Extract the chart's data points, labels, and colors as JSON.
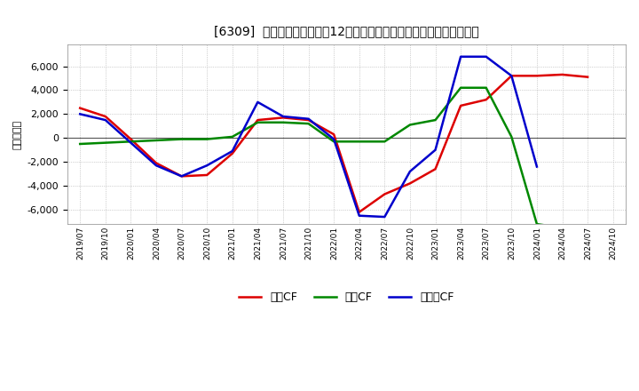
{
  "title": "[6309]  キャッシュフローの12か月移動合計の対前年同期増減額の推移",
  "ylabel": "（百万円）",
  "background_color": "#ffffff",
  "plot_bg_color": "#ffffff",
  "grid_color": "#aaaaaa",
  "x_labels": [
    "2019/07",
    "2019/10",
    "2020/01",
    "2020/04",
    "2020/07",
    "2020/10",
    "2021/01",
    "2021/04",
    "2021/07",
    "2021/10",
    "2022/01",
    "2022/04",
    "2022/07",
    "2022/10",
    "2023/01",
    "2023/04",
    "2023/07",
    "2023/10",
    "2024/01",
    "2024/04",
    "2024/07",
    "2024/10"
  ],
  "eigyo_cf": [
    2500,
    1800,
    -100,
    -2100,
    -3200,
    -3100,
    -1300,
    1500,
    1700,
    1500,
    300,
    -6200,
    -4700,
    -3800,
    -2600,
    2700,
    3200,
    5200,
    5200,
    5300,
    5100,
    null
  ],
  "toshi_cf": [
    -500,
    -400,
    -300,
    -200,
    -100,
    -100,
    100,
    1300,
    1300,
    1200,
    -300,
    -300,
    -300,
    1100,
    1500,
    4200,
    4200,
    100,
    -7200,
    -7500,
    null,
    null
  ],
  "free_cf": [
    2000,
    1500,
    -400,
    -2300,
    -3200,
    -2300,
    -1100,
    3000,
    1800,
    1600,
    -100,
    -6500,
    -6600,
    -2800,
    -1000,
    6800,
    6800,
    5200,
    -2400,
    null,
    null,
    null
  ],
  "eigyo_color": "#dd0000",
  "toshi_color": "#008800",
  "free_color": "#0000cc",
  "eigyo_label": "営業CF",
  "toshi_label": "投資CF",
  "free_label": "フリーCF",
  "ylim": [
    -7200,
    7800
  ],
  "yticks": [
    -6000,
    -4000,
    -2000,
    0,
    2000,
    4000,
    6000
  ]
}
